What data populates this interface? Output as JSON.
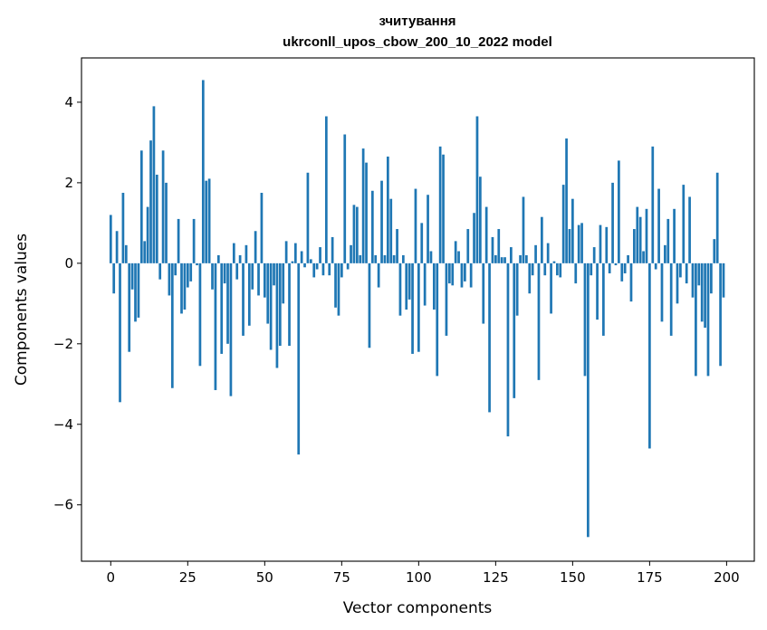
{
  "chart_data": {
    "type": "bar",
    "title": "зчитування",
    "subtitle": "ukrconll_upos_cbow_200_10_2022 model",
    "xlabel": "Vector components",
    "ylabel": "Components values",
    "xlim": [
      -9.5,
      209
    ],
    "ylim": [
      -7.4,
      5.1
    ],
    "xticks": [
      0,
      25,
      50,
      75,
      100,
      125,
      150,
      175,
      200
    ],
    "yticks": [
      -6,
      -4,
      -2,
      0,
      2,
      4
    ],
    "xtick_labels": [
      "0",
      "25",
      "50",
      "75",
      "100",
      "125",
      "150",
      "175",
      "200"
    ],
    "ytick_labels": [
      "−6",
      "−4",
      "−2",
      "0",
      "2",
      "4"
    ],
    "bar_color": "#1f77b4",
    "grid": false,
    "values": [
      1.2,
      -0.75,
      0.8,
      -3.45,
      1.75,
      0.45,
      -2.2,
      -0.65,
      -1.45,
      -1.35,
      2.8,
      0.55,
      1.4,
      3.05,
      3.9,
      2.2,
      -0.4,
      2.8,
      2.0,
      -0.8,
      -3.1,
      -0.3,
      1.1,
      -1.25,
      -1.15,
      -0.6,
      -0.45,
      1.1,
      -0.05,
      -2.55,
      4.55,
      2.05,
      2.1,
      -0.65,
      -3.15,
      0.2,
      -2.25,
      -0.5,
      -2.0,
      -3.3,
      0.5,
      -0.4,
      0.2,
      -1.8,
      0.45,
      -1.55,
      -0.65,
      0.8,
      -0.8,
      1.75,
      -0.85,
      -1.5,
      -2.15,
      -0.55,
      -2.6,
      -2.05,
      -1.0,
      0.55,
      -2.05,
      0.05,
      0.5,
      -4.75,
      0.3,
      -0.1,
      2.25,
      0.1,
      -0.35,
      -0.15,
      0.4,
      -0.3,
      3.65,
      -0.3,
      0.65,
      -1.1,
      -1.3,
      -0.35,
      3.2,
      -0.15,
      0.45,
      1.45,
      1.4,
      0.2,
      2.85,
      2.5,
      -2.1,
      1.8,
      0.2,
      -0.6,
      2.05,
      0.2,
      2.65,
      1.6,
      0.2,
      0.85,
      -1.3,
      0.2,
      -1.15,
      -0.9,
      -2.25,
      1.85,
      -2.2,
      1.0,
      -1.05,
      1.7,
      0.3,
      -1.15,
      -2.8,
      2.9,
      2.7,
      -1.8,
      -0.5,
      -0.55,
      0.55,
      0.3,
      -0.6,
      -0.45,
      0.85,
      -0.6,
      1.25,
      3.65,
      2.15,
      -1.5,
      1.4,
      -3.7,
      0.65,
      0.2,
      0.85,
      0.15,
      0.15,
      -4.3,
      0.4,
      -3.35,
      -1.3,
      0.2,
      1.65,
      0.2,
      -0.75,
      -0.3,
      0.45,
      -2.9,
      1.15,
      -0.3,
      0.5,
      -1.25,
      0.05,
      -0.3,
      -0.35,
      1.95,
      3.1,
      0.85,
      1.6,
      -0.5,
      0.95,
      1.0,
      -2.8,
      -6.8,
      -0.3,
      0.4,
      -1.4,
      0.95,
      -1.8,
      0.9,
      -0.25,
      2.0,
      -0.05,
      2.55,
      -0.45,
      -0.25,
      0.2,
      -0.95,
      0.85,
      1.4,
      1.15,
      0.3,
      1.35,
      -4.6,
      2.9,
      -0.15,
      1.85,
      -1.45,
      0.45,
      1.1,
      -1.8,
      1.35,
      -1.0,
      -0.35,
      1.95,
      -0.5,
      1.65,
      -0.85,
      -2.8,
      -0.55,
      -1.45,
      -1.6,
      -2.8,
      -0.75,
      0.6,
      2.25,
      -2.55,
      -0.85
    ]
  }
}
